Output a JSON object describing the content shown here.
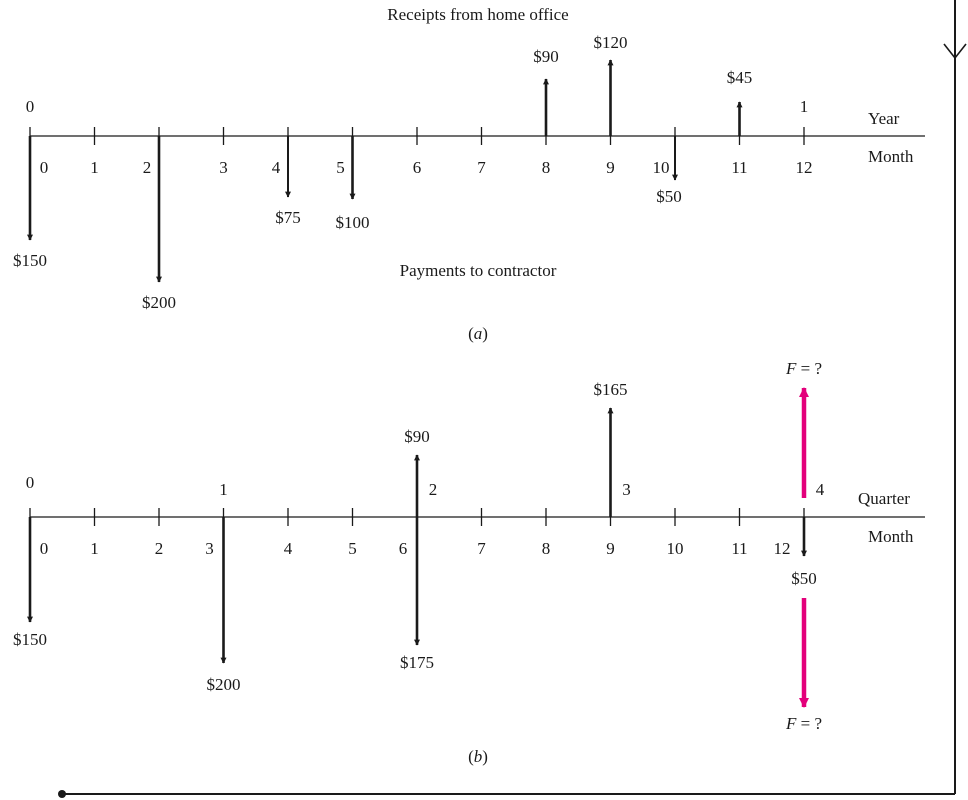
{
  "colors": {
    "ink": "#1a1a1a",
    "accent": "#e3007b"
  },
  "diagram_a": {
    "caption": "(a)",
    "caption_letter": "a",
    "top_label": "Receipts from home office",
    "bottom_label": "Payments to contractor",
    "axis_right_top": "Year",
    "axis_right_bottom": "Month",
    "year_ticks": [
      "0",
      "1"
    ],
    "month_ticks": [
      "0",
      "1",
      "2",
      "3",
      "4",
      "5",
      "6",
      "7",
      "8",
      "9",
      "10",
      "11",
      "12"
    ],
    "flows": [
      {
        "month": 0,
        "dir": "down",
        "value": "$150"
      },
      {
        "month": 2,
        "dir": "down",
        "value": "$200"
      },
      {
        "month": 4,
        "dir": "down",
        "value": "$75"
      },
      {
        "month": 5,
        "dir": "down",
        "value": "$100"
      },
      {
        "month": 8,
        "dir": "up",
        "value": "$90"
      },
      {
        "month": 9,
        "dir": "up",
        "value": "$120"
      },
      {
        "month": 10,
        "dir": "down",
        "value": "$50"
      },
      {
        "month": 11,
        "dir": "up",
        "value": "$45"
      }
    ]
  },
  "diagram_b": {
    "caption": "(b)",
    "caption_letter": "b",
    "axis_right_top": "Quarter",
    "axis_right_bottom": "Month",
    "quarter_ticks": [
      "0",
      "1",
      "2",
      "3",
      "4"
    ],
    "month_ticks": [
      "0",
      "1",
      "2",
      "3",
      "4",
      "5",
      "6",
      "7",
      "8",
      "9",
      "10",
      "11",
      "12"
    ],
    "flows": [
      {
        "month": 0,
        "dir": "down",
        "value": "$150"
      },
      {
        "month": 3,
        "dir": "down",
        "value": "$200"
      },
      {
        "month": 6,
        "dir": "up",
        "value": "$90"
      },
      {
        "month": 6,
        "dir": "down",
        "value": "$175"
      },
      {
        "month": 9,
        "dir": "up",
        "value": "$165"
      },
      {
        "month": 12,
        "dir": "down",
        "value": "$50"
      }
    ],
    "future_label": "F = ?",
    "future_var": "F",
    "future_rest": " = ?"
  }
}
